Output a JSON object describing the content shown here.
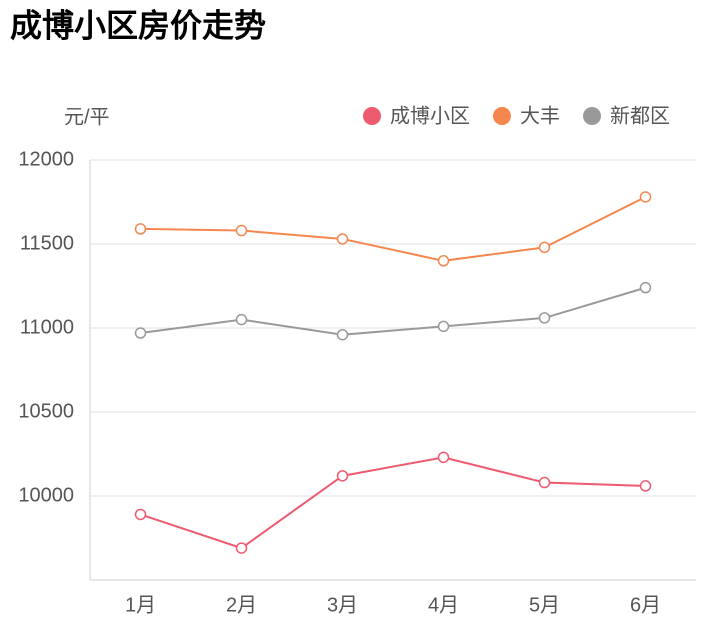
{
  "chart_data": {
    "type": "line",
    "title": "成博小区房价走势",
    "y_label": "元/平",
    "categories": [
      "1月",
      "2月",
      "3月",
      "4月",
      "5月",
      "6月"
    ],
    "series": [
      {
        "name": "成博小区",
        "color": "#ee5a6f",
        "values": [
          9890,
          9690,
          10120,
          10230,
          10080,
          10060
        ]
      },
      {
        "name": "大丰",
        "color": "#f5874e",
        "values": [
          11590,
          11580,
          11530,
          11400,
          11480,
          11780
        ]
      },
      {
        "name": "新都区",
        "color": "#999999",
        "values": [
          10970,
          11050,
          10960,
          11010,
          11060,
          11240
        ]
      }
    ],
    "ylim": [
      9500,
      12000
    ],
    "yticks": [
      10000,
      10500,
      11000,
      11500,
      12000
    ],
    "grid": true
  }
}
